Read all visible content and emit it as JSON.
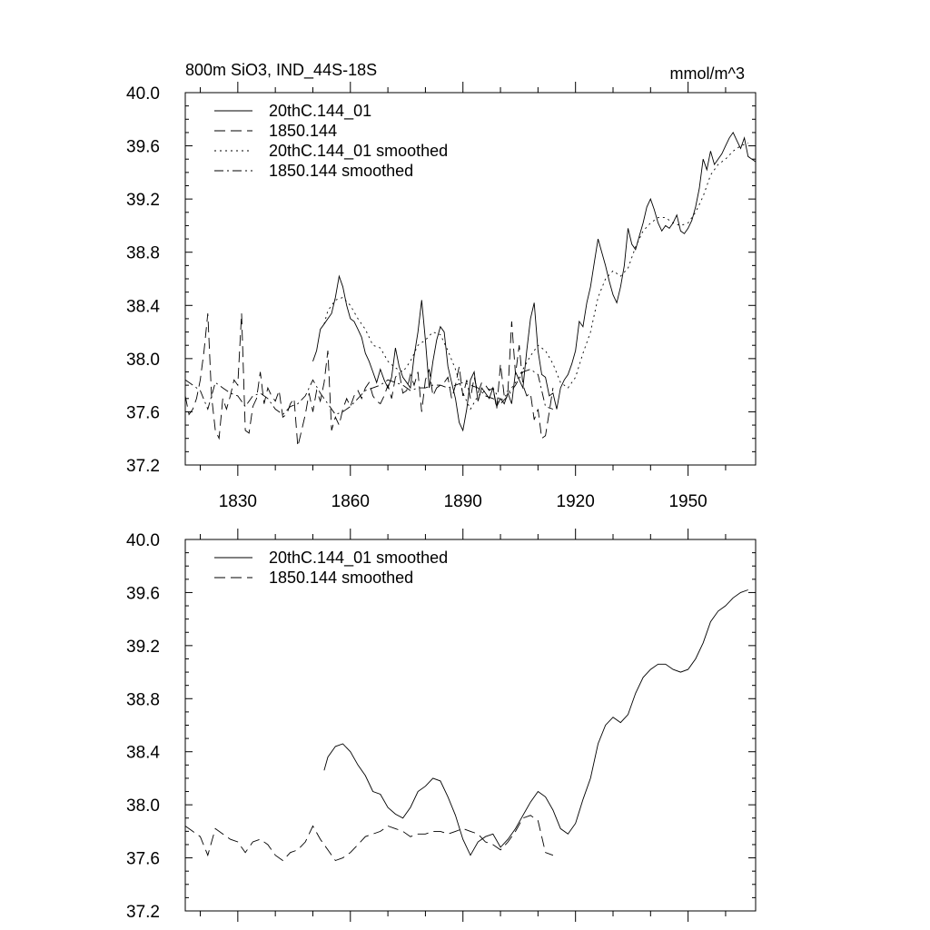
{
  "figure": {
    "title_left": "800m SiO3, IND_44S-18S",
    "title_right": "mmol/m^3"
  },
  "chart_data": [
    {
      "type": "line",
      "xlim": [
        1816,
        1968
      ],
      "ylim": [
        37.2,
        40.0
      ],
      "x_ticks": [
        1830,
        1860,
        1890,
        1920,
        1950
      ],
      "x_tick_labels": [
        "1830",
        "1860",
        "1890",
        "1920",
        "1950"
      ],
      "y_ticks": [
        37.2,
        37.6,
        38.0,
        38.4,
        38.8,
        39.2,
        39.6,
        40.0
      ],
      "y_tick_labels": [
        "37.2",
        "37.6",
        "38.0",
        "38.4",
        "38.8",
        "39.2",
        "39.6",
        "40.0"
      ],
      "legend_position": "top-left",
      "series": [
        {
          "name": "20thC.144_01",
          "style": "solid",
          "x": [
            1850,
            1851,
            1852,
            1853,
            1854,
            1855,
            1856,
            1857,
            1858,
            1859,
            1860,
            1861,
            1862,
            1863,
            1864,
            1865,
            1866,
            1867,
            1868,
            1869,
            1870,
            1871,
            1872,
            1873,
            1874,
            1875,
            1876,
            1877,
            1878,
            1879,
            1880,
            1881,
            1882,
            1883,
            1884,
            1885,
            1886,
            1887,
            1888,
            1889,
            1890,
            1891,
            1892,
            1893,
            1894,
            1895,
            1896,
            1897,
            1898,
            1899,
            1900,
            1901,
            1902,
            1903,
            1904,
            1905,
            1906,
            1907,
            1908,
            1909,
            1910,
            1911,
            1912,
            1913,
            1914,
            1915,
            1916,
            1917,
            1918,
            1919,
            1920,
            1921,
            1922,
            1923,
            1924,
            1925,
            1926,
            1927,
            1928,
            1929,
            1930,
            1931,
            1932,
            1933,
            1934,
            1935,
            1936,
            1937,
            1938,
            1939,
            1940,
            1941,
            1942,
            1943,
            1944,
            1945,
            1946,
            1947,
            1948,
            1949,
            1950,
            1951,
            1952,
            1953,
            1954,
            1955,
            1956,
            1957,
            1958,
            1959,
            1960,
            1961,
            1962,
            1963,
            1964,
            1965,
            1966,
            1967,
            1968
          ],
          "y": [
            37.98,
            38.06,
            38.22,
            38.26,
            38.3,
            38.34,
            38.46,
            38.62,
            38.54,
            38.4,
            38.3,
            38.28,
            38.22,
            38.16,
            38.04,
            37.98,
            37.9,
            37.82,
            37.92,
            37.84,
            37.78,
            37.86,
            38.08,
            37.94,
            37.86,
            37.82,
            37.78,
            38.02,
            38.2,
            38.44,
            38.14,
            37.78,
            37.98,
            38.14,
            38.24,
            38.2,
            37.94,
            37.82,
            37.7,
            37.52,
            37.46,
            37.62,
            37.84,
            37.9,
            37.68,
            37.78,
            37.74,
            37.7,
            37.78,
            37.64,
            37.7,
            37.66,
            37.74,
            37.66,
            37.9,
            37.84,
            37.78,
            38.06,
            38.3,
            38.42,
            38.06,
            37.88,
            37.86,
            37.72,
            37.74,
            37.62,
            37.78,
            37.84,
            37.88,
            37.96,
            38.06,
            38.28,
            38.24,
            38.42,
            38.54,
            38.72,
            38.9,
            38.8,
            38.7,
            38.58,
            38.48,
            38.42,
            38.54,
            38.7,
            38.98,
            38.86,
            38.82,
            38.92,
            39.02,
            39.14,
            39.2,
            39.12,
            39.02,
            38.96,
            39.0,
            38.98,
            39.02,
            39.08,
            38.96,
            38.94,
            38.98,
            39.04,
            39.14,
            39.28,
            39.5,
            39.42,
            39.56,
            39.46,
            39.5,
            39.54,
            39.6,
            39.66,
            39.7,
            39.64,
            39.58,
            39.66,
            39.52,
            39.5,
            39.48
          ]
        },
        {
          "name": "1850.144",
          "style": "dashed",
          "x": [
            1816,
            1817,
            1818,
            1819,
            1820,
            1821,
            1822,
            1823,
            1824,
            1825,
            1826,
            1827,
            1828,
            1829,
            1830,
            1831,
            1832,
            1833,
            1834,
            1835,
            1836,
            1837,
            1838,
            1839,
            1840,
            1841,
            1842,
            1843,
            1844,
            1845,
            1846,
            1847,
            1848,
            1849,
            1850,
            1851,
            1852,
            1853,
            1854,
            1855,
            1856,
            1857,
            1858,
            1859,
            1860,
            1861,
            1862,
            1863,
            1864,
            1865,
            1866,
            1867,
            1868,
            1869,
            1870,
            1871,
            1872,
            1873,
            1874,
            1875,
            1876,
            1877,
            1878,
            1879,
            1880,
            1881,
            1882,
            1883,
            1884,
            1885,
            1886,
            1887,
            1888,
            1889,
            1890,
            1891,
            1892,
            1893,
            1894,
            1895,
            1896,
            1897,
            1898,
            1899,
            1900,
            1901,
            1902,
            1903,
            1904,
            1905,
            1906,
            1907,
            1908,
            1909,
            1910,
            1911,
            1912,
            1913,
            1914
          ],
          "y": [
            37.72,
            37.58,
            37.62,
            37.7,
            37.84,
            38.06,
            38.34,
            37.72,
            37.46,
            37.4,
            37.7,
            37.62,
            37.72,
            37.84,
            37.8,
            38.34,
            37.46,
            37.44,
            37.64,
            37.7,
            37.9,
            37.66,
            37.78,
            37.72,
            37.68,
            37.76,
            37.56,
            37.58,
            37.66,
            37.7,
            37.34,
            37.46,
            37.58,
            37.74,
            37.6,
            37.76,
            37.68,
            37.82,
            38.06,
            37.46,
            37.56,
            37.5,
            37.62,
            37.7,
            37.64,
            37.72,
            37.76,
            37.7,
            37.78,
            37.82,
            37.72,
            37.68,
            37.66,
            37.72,
            37.8,
            37.7,
            37.86,
            37.9,
            37.74,
            37.76,
            37.88,
            37.8,
            37.9,
            37.6,
            37.84,
            37.92,
            37.72,
            37.78,
            37.8,
            37.82,
            37.86,
            37.7,
            37.8,
            37.94,
            37.72,
            37.84,
            37.7,
            37.86,
            37.74,
            37.82,
            37.8,
            37.76,
            37.78,
            37.62,
            37.96,
            37.72,
            37.76,
            38.28,
            37.88,
            38.1,
            37.8,
            37.72,
            37.74,
            37.54,
            37.62,
            37.4,
            37.42,
            37.6,
            37.78
          ]
        },
        {
          "name": "20thC.144_01 smoothed",
          "style": "dotted",
          "x": [
            1853,
            1854,
            1856,
            1858,
            1860,
            1862,
            1864,
            1866,
            1868,
            1870,
            1872,
            1874,
            1876,
            1878,
            1880,
            1882,
            1884,
            1886,
            1888,
            1890,
            1892,
            1894,
            1896,
            1898,
            1900,
            1902,
            1904,
            1906,
            1908,
            1910,
            1912,
            1914,
            1916,
            1918,
            1920,
            1922,
            1924,
            1926,
            1928,
            1930,
            1932,
            1934,
            1936,
            1938,
            1940,
            1942,
            1944,
            1946,
            1948,
            1950,
            1952,
            1954,
            1956,
            1958,
            1960,
            1962,
            1964,
            1966
          ],
          "y": [
            38.26,
            38.36,
            38.44,
            38.46,
            38.4,
            38.3,
            38.22,
            38.1,
            38.08,
            37.98,
            37.93,
            37.9,
            37.98,
            38.1,
            38.14,
            38.2,
            38.18,
            38.06,
            37.92,
            37.74,
            37.62,
            37.72,
            37.76,
            37.78,
            37.68,
            37.74,
            37.82,
            37.92,
            38.02,
            38.1,
            38.06,
            37.96,
            37.82,
            37.78,
            37.86,
            38.04,
            38.2,
            38.46,
            38.6,
            38.66,
            38.62,
            38.68,
            38.84,
            38.96,
            39.02,
            39.06,
            39.06,
            39.02,
            39.0,
            39.02,
            39.1,
            39.22,
            39.38,
            39.46,
            39.5,
            39.56,
            39.6,
            39.62
          ]
        },
        {
          "name": "1850.144 smoothed",
          "style": "dashdot",
          "x": [
            1816,
            1818,
            1820,
            1822,
            1824,
            1826,
            1828,
            1830,
            1832,
            1834,
            1836,
            1838,
            1840,
            1842,
            1844,
            1846,
            1848,
            1850,
            1852,
            1854,
            1856,
            1858,
            1860,
            1862,
            1864,
            1866,
            1868,
            1870,
            1872,
            1874,
            1876,
            1878,
            1880,
            1882,
            1884,
            1886,
            1888,
            1890,
            1892,
            1894,
            1896,
            1898,
            1900,
            1902,
            1904,
            1906,
            1908,
            1910,
            1912,
            1914
          ],
          "y": [
            37.84,
            37.8,
            37.76,
            37.62,
            37.82,
            37.78,
            37.74,
            37.72,
            37.64,
            37.72,
            37.74,
            37.7,
            37.62,
            37.58,
            37.64,
            37.66,
            37.72,
            37.84,
            37.74,
            37.66,
            37.58,
            37.6,
            37.64,
            37.7,
            37.76,
            37.78,
            37.8,
            37.84,
            37.82,
            37.8,
            37.76,
            37.78,
            37.78,
            37.8,
            37.8,
            37.78,
            37.8,
            37.82,
            37.8,
            37.78,
            37.72,
            37.7,
            37.66,
            37.72,
            37.8,
            37.9,
            37.92,
            37.88,
            37.64,
            37.62
          ]
        }
      ]
    },
    {
      "type": "line",
      "xlim": [
        1816,
        1968
      ],
      "ylim": [
        37.2,
        40.0
      ],
      "x_ticks": [
        1830,
        1860,
        1890,
        1920,
        1950
      ],
      "x_tick_labels": [],
      "y_ticks": [
        37.2,
        37.6,
        38.0,
        38.4,
        38.8,
        39.2,
        39.6,
        40.0
      ],
      "y_tick_labels": [
        "37.2",
        "37.6",
        "38.0",
        "38.4",
        "38.8",
        "39.2",
        "39.6",
        "40.0"
      ],
      "legend_position": "top-left",
      "series": [
        {
          "name": "20thC.144_01 smoothed",
          "style": "solid",
          "x": [
            1853,
            1854,
            1856,
            1858,
            1860,
            1862,
            1864,
            1866,
            1868,
            1870,
            1872,
            1874,
            1876,
            1878,
            1880,
            1882,
            1884,
            1886,
            1888,
            1890,
            1892,
            1894,
            1896,
            1898,
            1900,
            1902,
            1904,
            1906,
            1908,
            1910,
            1912,
            1914,
            1916,
            1918,
            1920,
            1922,
            1924,
            1926,
            1928,
            1930,
            1932,
            1934,
            1936,
            1938,
            1940,
            1942,
            1944,
            1946,
            1948,
            1950,
            1952,
            1954,
            1956,
            1958,
            1960,
            1962,
            1964,
            1966
          ],
          "y": [
            38.26,
            38.36,
            38.44,
            38.46,
            38.4,
            38.3,
            38.22,
            38.1,
            38.08,
            37.98,
            37.93,
            37.9,
            37.98,
            38.1,
            38.14,
            38.2,
            38.18,
            38.06,
            37.92,
            37.74,
            37.62,
            37.72,
            37.76,
            37.78,
            37.68,
            37.74,
            37.82,
            37.92,
            38.02,
            38.1,
            38.06,
            37.96,
            37.82,
            37.78,
            37.86,
            38.04,
            38.2,
            38.46,
            38.6,
            38.66,
            38.62,
            38.68,
            38.84,
            38.96,
            39.02,
            39.06,
            39.06,
            39.02,
            39.0,
            39.02,
            39.1,
            39.22,
            39.38,
            39.46,
            39.5,
            39.56,
            39.6,
            39.62
          ]
        },
        {
          "name": "1850.144 smoothed",
          "style": "dashed",
          "x": [
            1816,
            1818,
            1820,
            1822,
            1824,
            1826,
            1828,
            1830,
            1832,
            1834,
            1836,
            1838,
            1840,
            1842,
            1844,
            1846,
            1848,
            1850,
            1852,
            1854,
            1856,
            1858,
            1860,
            1862,
            1864,
            1866,
            1868,
            1870,
            1872,
            1874,
            1876,
            1878,
            1880,
            1882,
            1884,
            1886,
            1888,
            1890,
            1892,
            1894,
            1896,
            1898,
            1900,
            1902,
            1904,
            1906,
            1908,
            1910,
            1912,
            1914
          ],
          "y": [
            37.84,
            37.8,
            37.76,
            37.62,
            37.82,
            37.78,
            37.74,
            37.72,
            37.64,
            37.72,
            37.74,
            37.7,
            37.62,
            37.58,
            37.64,
            37.66,
            37.72,
            37.84,
            37.74,
            37.66,
            37.58,
            37.6,
            37.64,
            37.7,
            37.76,
            37.78,
            37.8,
            37.84,
            37.82,
            37.8,
            37.76,
            37.78,
            37.78,
            37.8,
            37.8,
            37.78,
            37.8,
            37.82,
            37.8,
            37.78,
            37.72,
            37.7,
            37.66,
            37.72,
            37.8,
            37.9,
            37.92,
            37.88,
            37.64,
            37.62
          ]
        }
      ]
    }
  ]
}
